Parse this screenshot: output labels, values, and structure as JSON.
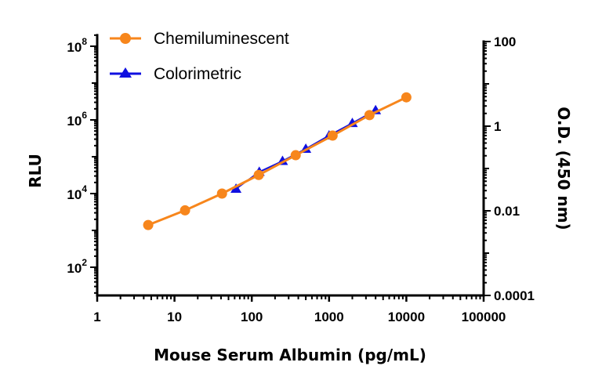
{
  "chart_data": {
    "type": "line",
    "xlabel": "Mouse Serum Albumin (pg/mL)",
    "ylabel_left": "RLU",
    "ylabel_right": "O.D. (450 nm)",
    "x_scale": "log",
    "y_left_scale": "log",
    "y_right_scale": "log",
    "xlim": [
      1,
      100000
    ],
    "ylim_left": [
      18,
      200000000
    ],
    "ylim_right": [
      0.0001,
      100
    ],
    "grid": false,
    "legend_position": "top-left",
    "x_tick_labels": [
      "1",
      "10",
      "100",
      "1000",
      "10000",
      "100000"
    ],
    "y_left_tick_labels": [
      {
        "base": "10",
        "exp": "8"
      },
      {
        "base": "10",
        "exp": "6"
      },
      {
        "base": "10",
        "exp": "4"
      },
      {
        "base": "10",
        "exp": "2"
      }
    ],
    "y_right_tick_labels": [
      "100",
      "1",
      "0.01",
      "0.0001"
    ],
    "series": [
      {
        "name": "Chemiluminescent",
        "axis": "left",
        "color": "#f7861c",
        "marker": "circle",
        "x": [
          4.57,
          13.7,
          41.2,
          123,
          370,
          1111,
          3333,
          10000
        ],
        "y": [
          1400,
          3500,
          10000,
          32000,
          110000,
          375000,
          1350000,
          4100000
        ]
      },
      {
        "name": "Colorimetric",
        "axis": "right",
        "color": "#1010e0",
        "marker": "triangle",
        "x": [
          62.5,
          125,
          250,
          500,
          1000,
          2000,
          4000
        ],
        "y": [
          0.033,
          0.083,
          0.15,
          0.29,
          0.6,
          1.18,
          2.37
        ]
      }
    ]
  }
}
